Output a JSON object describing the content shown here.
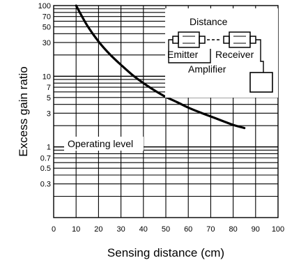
{
  "chart_data": {
    "type": "line",
    "title": "",
    "xlabel": "Sensing distance (cm)",
    "ylabel": "Excess gain ratio",
    "xlim": [
      0,
      100
    ],
    "ylim": [
      0.1,
      100
    ],
    "yscale": "log",
    "grid": true,
    "x_ticks": [
      "0",
      "10",
      "20",
      "30",
      "40",
      "50",
      "60",
      "70",
      "80",
      "90",
      "100"
    ],
    "y_ticks": [
      "100",
      "70",
      "50",
      "30",
      "10",
      "7",
      "5",
      "3",
      "1",
      "0.7",
      "0.5",
      "0.3"
    ],
    "series": [
      {
        "x": [
          10,
          15,
          20,
          25,
          30,
          35,
          40,
          45,
          50,
          55,
          60,
          65,
          70,
          75,
          80,
          85
        ],
        "y": [
          100,
          52,
          31,
          20.5,
          14.5,
          10.5,
          8,
          6.3,
          5.1,
          4.3,
          3.6,
          3.1,
          2.7,
          2.35,
          2.05,
          1.85
        ]
      }
    ],
    "annotations": {
      "operating_level": "Operating level",
      "operating_level_value": 1,
      "inset_distance": "Distance",
      "inset_emitter": "Emitter",
      "inset_receiver": "Receiver",
      "inset_amplifier": "Amplifier"
    }
  }
}
